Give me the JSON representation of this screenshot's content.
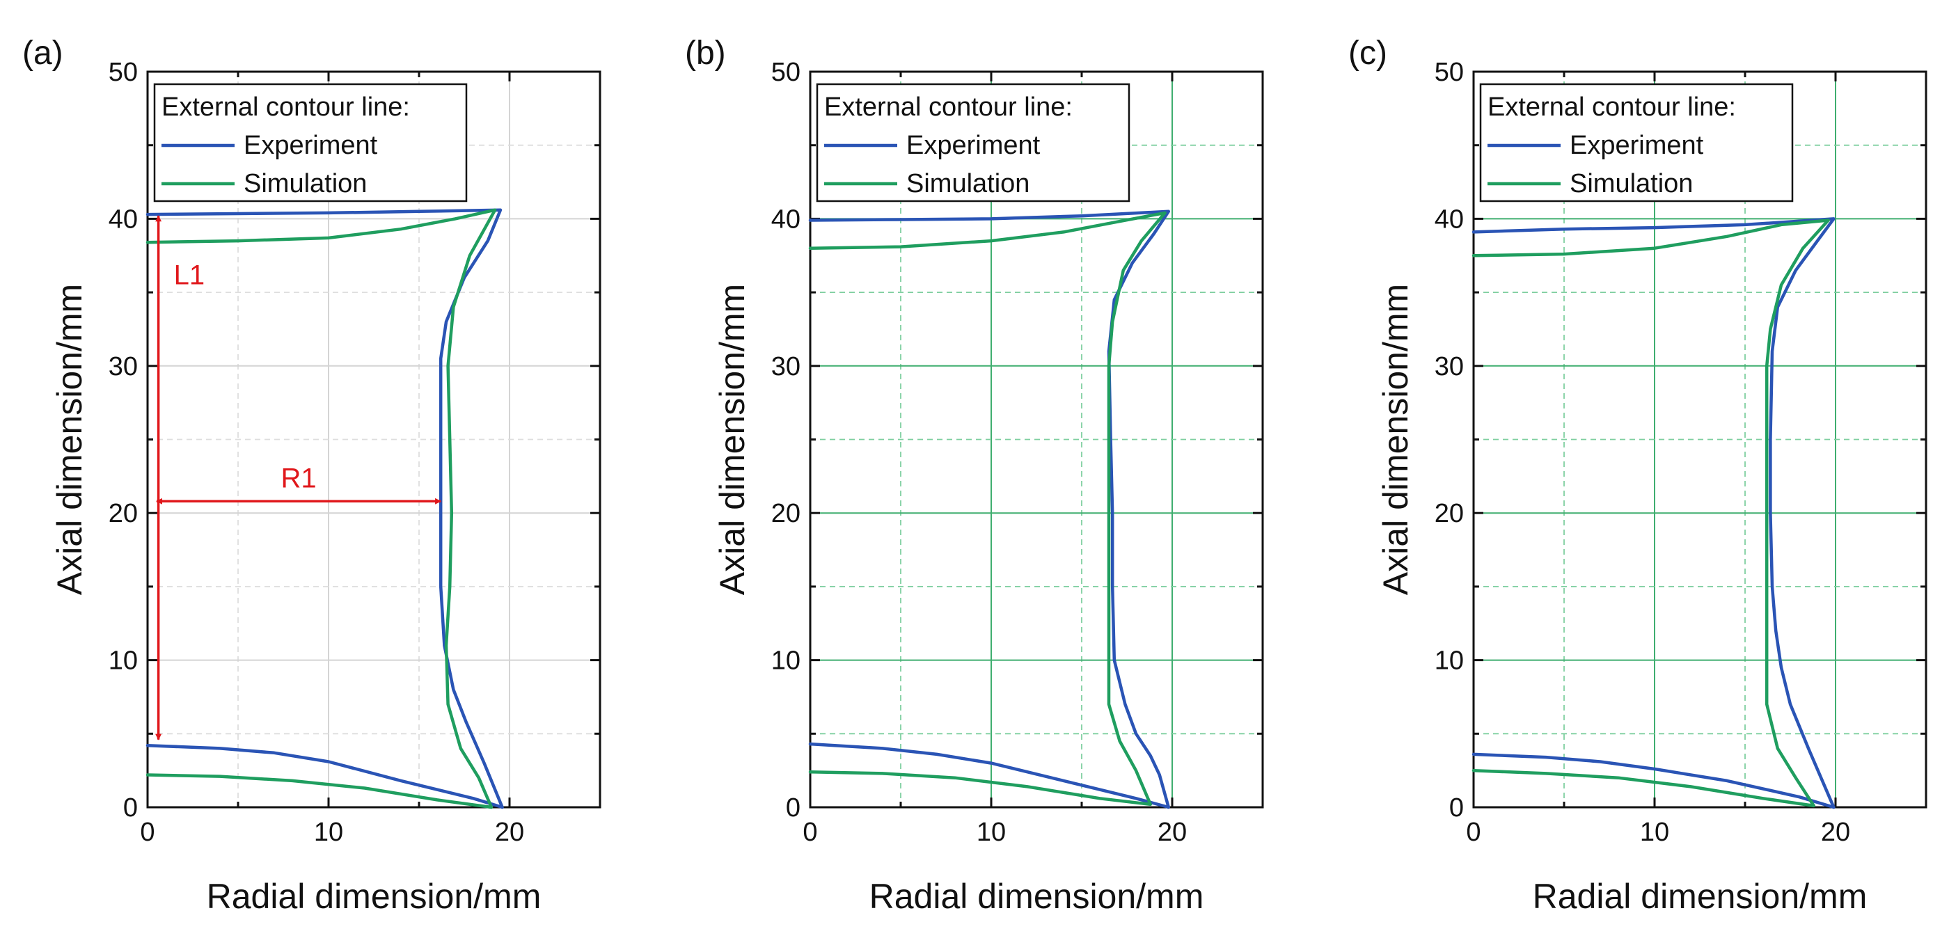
{
  "figure_note": "Comparison of external contour lines, experiment vs simulation",
  "colors": {
    "experiment": "#2a54b5",
    "simulation": "#1f9e5f",
    "annotation": "#e0171b",
    "grid_gray": "#d4d4d4",
    "grid_green": "#3fae6f"
  },
  "chart_data": [
    {
      "type": "line",
      "panel_label": "(a)",
      "xlabel": "Radial dimension/mm",
      "ylabel": "Axial dimension/mm",
      "xlim": [
        0,
        25
      ],
      "ylim": [
        0,
        50
      ],
      "xticks": [
        0,
        10,
        20
      ],
      "yticks": [
        0,
        10,
        20,
        30,
        40,
        50
      ],
      "grid": "gray-solid",
      "legend": {
        "title": "External contour line:",
        "position": "top-left",
        "entries": [
          "Experiment",
          "Simulation"
        ]
      },
      "series": [
        {
          "name": "Experiment",
          "color": "#2a54b5",
          "points": [
            [
              0,
              40.3
            ],
            [
              5,
              40.35
            ],
            [
              10,
              40.4
            ],
            [
              15,
              40.5
            ],
            [
              19.5,
              40.6
            ],
            [
              18.8,
              38.5
            ],
            [
              17.5,
              36
            ],
            [
              16.5,
              33
            ],
            [
              16.2,
              30.5
            ],
            [
              16.2,
              25
            ],
            [
              16.2,
              20
            ],
            [
              16.2,
              15
            ],
            [
              16.4,
              11
            ],
            [
              16.9,
              8
            ],
            [
              17.6,
              5.8
            ],
            [
              18.6,
              3
            ],
            [
              19.6,
              0
            ],
            [
              18,
              0.6
            ],
            [
              14,
              1.8
            ],
            [
              10,
              3.1
            ],
            [
              7,
              3.7
            ],
            [
              4,
              4.0
            ],
            [
              0,
              4.2
            ]
          ]
        },
        {
          "name": "Simulation",
          "color": "#1f9e5f",
          "points": [
            [
              0,
              38.4
            ],
            [
              5,
              38.5
            ],
            [
              10,
              38.7
            ],
            [
              14,
              39.3
            ],
            [
              17,
              40
            ],
            [
              19.2,
              40.6
            ],
            [
              17.8,
              37.5
            ],
            [
              16.9,
              34
            ],
            [
              16.6,
              30
            ],
            [
              16.7,
              25
            ],
            [
              16.8,
              20
            ],
            [
              16.7,
              15
            ],
            [
              16.5,
              11
            ],
            [
              16.6,
              7
            ],
            [
              17.3,
              4
            ],
            [
              18.3,
              2
            ],
            [
              19,
              0
            ],
            [
              16,
              0.5
            ],
            [
              12,
              1.3
            ],
            [
              8,
              1.8
            ],
            [
              4,
              2.1
            ],
            [
              0,
              2.2
            ]
          ]
        }
      ],
      "annotations": [
        {
          "label": "L1",
          "from": [
            0.6,
            40.2
          ],
          "to": [
            0.6,
            4.6
          ]
        },
        {
          "label": "R1",
          "from": [
            0.5,
            20.8
          ],
          "to": [
            16.2,
            20.8
          ]
        }
      ]
    },
    {
      "type": "line",
      "panel_label": "(b)",
      "xlabel": "Radial dimension/mm",
      "ylabel": "Axial dimension/mm",
      "xlim": [
        0,
        25
      ],
      "ylim": [
        0,
        50
      ],
      "xticks": [
        0,
        10,
        20
      ],
      "yticks": [
        0,
        10,
        20,
        30,
        40,
        50
      ],
      "grid": "green",
      "legend": {
        "title": "External contour line:",
        "position": "top-left",
        "entries": [
          "Experiment",
          "Simulation"
        ]
      },
      "series": [
        {
          "name": "Experiment",
          "color": "#2a54b5",
          "points": [
            [
              0,
              39.9
            ],
            [
              5,
              39.95
            ],
            [
              10,
              40
            ],
            [
              15,
              40.2
            ],
            [
              19.8,
              40.5
            ],
            [
              19,
              39
            ],
            [
              17.8,
              37
            ],
            [
              16.8,
              34.5
            ],
            [
              16.5,
              31
            ],
            [
              16.6,
              25
            ],
            [
              16.7,
              20
            ],
            [
              16.7,
              15
            ],
            [
              16.8,
              10
            ],
            [
              17.4,
              7
            ],
            [
              18,
              5
            ],
            [
              18.8,
              3.5
            ],
            [
              19.3,
              2.2
            ],
            [
              19.8,
              0
            ],
            [
              18,
              0.6
            ],
            [
              14,
              1.8
            ],
            [
              10,
              3.0
            ],
            [
              7,
              3.6
            ],
            [
              4,
              4.0
            ],
            [
              0,
              4.3
            ]
          ]
        },
        {
          "name": "Simulation",
          "color": "#1f9e5f",
          "points": [
            [
              0,
              38
            ],
            [
              5,
              38.1
            ],
            [
              10,
              38.5
            ],
            [
              14,
              39.1
            ],
            [
              17,
              39.8
            ],
            [
              19.6,
              40.4
            ],
            [
              18.3,
              38.5
            ],
            [
              17.3,
              36.5
            ],
            [
              16.7,
              33
            ],
            [
              16.5,
              30
            ],
            [
              16.5,
              25
            ],
            [
              16.5,
              20
            ],
            [
              16.5,
              15
            ],
            [
              16.5,
              10
            ],
            [
              16.5,
              7
            ],
            [
              17.1,
              4.5
            ],
            [
              18,
              2.5
            ],
            [
              18.8,
              0.2
            ],
            [
              16,
              0.6
            ],
            [
              12,
              1.4
            ],
            [
              8,
              2.0
            ],
            [
              4,
              2.3
            ],
            [
              0,
              2.4
            ]
          ]
        }
      ]
    },
    {
      "type": "line",
      "panel_label": "(c)",
      "xlabel": "Radial dimension/mm",
      "ylabel": "Axial dimension/mm",
      "xlim": [
        0,
        25
      ],
      "ylim": [
        0,
        50
      ],
      "xticks": [
        0,
        10,
        20
      ],
      "yticks": [
        0,
        10,
        20,
        30,
        40,
        50
      ],
      "grid": "green",
      "legend": {
        "title": "External contour line:",
        "position": "top-left",
        "entries": [
          "Experiment",
          "Simulation"
        ]
      },
      "series": [
        {
          "name": "Experiment",
          "color": "#2a54b5",
          "points": [
            [
              0,
              39.1
            ],
            [
              5,
              39.3
            ],
            [
              10,
              39.4
            ],
            [
              15,
              39.6
            ],
            [
              19.9,
              40
            ],
            [
              19,
              38.5
            ],
            [
              17.8,
              36.5
            ],
            [
              16.8,
              34
            ],
            [
              16.5,
              31
            ],
            [
              16.4,
              25
            ],
            [
              16.4,
              20
            ],
            [
              16.5,
              15
            ],
            [
              16.7,
              12
            ],
            [
              17,
              9.5
            ],
            [
              17.5,
              7
            ],
            [
              18.5,
              4
            ],
            [
              19.9,
              0
            ],
            [
              18,
              0.7
            ],
            [
              14,
              1.8
            ],
            [
              10,
              2.6
            ],
            [
              7,
              3.1
            ],
            [
              4,
              3.4
            ],
            [
              0,
              3.6
            ]
          ]
        },
        {
          "name": "Simulation",
          "color": "#1f9e5f",
          "points": [
            [
              0,
              37.5
            ],
            [
              5,
              37.6
            ],
            [
              10,
              38
            ],
            [
              14,
              38.8
            ],
            [
              17,
              39.6
            ],
            [
              19.6,
              39.9
            ],
            [
              18.2,
              38
            ],
            [
              17,
              35.5
            ],
            [
              16.4,
              32.5
            ],
            [
              16.2,
              30
            ],
            [
              16.2,
              25
            ],
            [
              16.2,
              20
            ],
            [
              16.2,
              15
            ],
            [
              16.2,
              10
            ],
            [
              16.2,
              7
            ],
            [
              16.8,
              4
            ],
            [
              17.8,
              2
            ],
            [
              18.8,
              0.1
            ],
            [
              16,
              0.6
            ],
            [
              12,
              1.4
            ],
            [
              8,
              2.0
            ],
            [
              4,
              2.3
            ],
            [
              0,
              2.5
            ]
          ]
        }
      ]
    }
  ]
}
